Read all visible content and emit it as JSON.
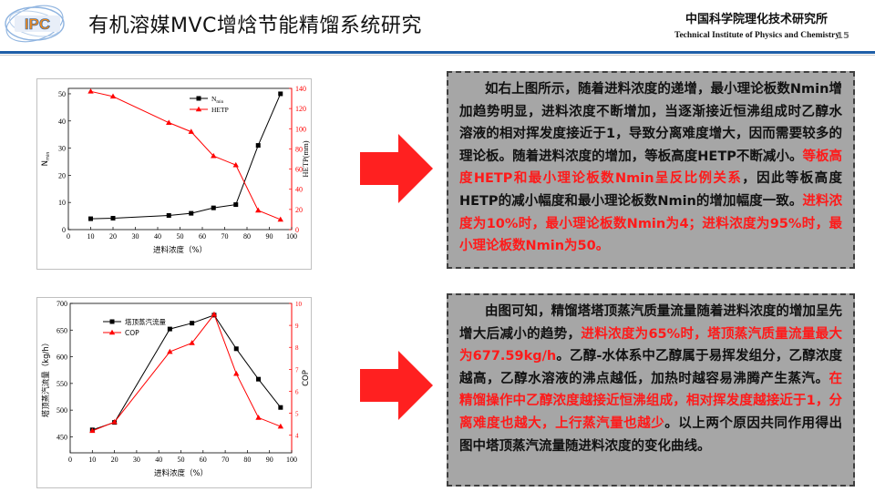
{
  "header": {
    "logo_text": "IPC",
    "title": "有机溶媒MVC增焓节能精馏系统研究",
    "institute_cn": "中国科学院理化技术研究所",
    "institute_en": "Technical Institute of Physics and Chemistry",
    "page_number": "15"
  },
  "chart_data": [
    {
      "type": "line",
      "x": [
        10,
        20,
        45,
        55,
        65,
        75,
        85,
        95
      ],
      "xlabel": "进料浓度（%）",
      "xlim": [
        0,
        100
      ],
      "x_ticks": [
        0,
        10,
        20,
        30,
        40,
        50,
        60,
        70,
        80,
        90,
        100
      ],
      "y_left": {
        "label_main": "N",
        "label_sub": "min",
        "lim": [
          0,
          52
        ],
        "ticks": [
          0,
          10,
          20,
          30,
          40,
          50
        ]
      },
      "y_right": {
        "label": "HETP(mm)",
        "lim": [
          0,
          140
        ],
        "ticks": [
          0,
          20,
          40,
          60,
          80,
          100,
          120,
          140
        ],
        "color": "#ff0000"
      },
      "series": [
        {
          "name_main": "N",
          "name_sub": "min",
          "axis": "left",
          "color": "#000000",
          "marker": "square",
          "values": [
            4,
            4.2,
            5.2,
            6,
            8,
            9.2,
            31,
            50
          ]
        },
        {
          "name_main": "HETP",
          "name_sub": "",
          "axis": "right",
          "color": "#ff0000",
          "marker": "triangle",
          "values": [
            137,
            132,
            106,
            97,
            73,
            64,
            19,
            10
          ]
        }
      ],
      "legend_position": "top-center",
      "grid": false
    },
    {
      "type": "line",
      "x": [
        10,
        20,
        45,
        55,
        65,
        75,
        85,
        95
      ],
      "xlabel": "进料浓度（%）",
      "xlim": [
        0,
        100
      ],
      "x_ticks": [
        0,
        10,
        20,
        30,
        40,
        50,
        60,
        70,
        80,
        90,
        100
      ],
      "y_left": {
        "label_main": "塔顶蒸汽流量（kg/h）",
        "label_sub": "",
        "lim": [
          420,
          700
        ],
        "ticks": [
          450,
          500,
          550,
          600,
          650,
          700
        ]
      },
      "y_right": {
        "label": "COP",
        "lim": [
          3.2,
          10
        ],
        "ticks": [
          4,
          5,
          6,
          7,
          8,
          9,
          10
        ],
        "color": "#ff0000"
      },
      "series": [
        {
          "name_main": "塔顶蒸汽流量",
          "name_sub": "",
          "axis": "left",
          "color": "#000000",
          "marker": "square",
          "values": [
            463,
            477,
            652,
            663,
            678,
            615,
            558,
            505
          ]
        },
        {
          "name_main": "COP",
          "name_sub": "",
          "axis": "right",
          "color": "#ff0000",
          "marker": "triangle",
          "values": [
            4.2,
            4.6,
            7.8,
            8.2,
            9.5,
            6.8,
            4.8,
            4.4
          ]
        }
      ],
      "legend_position": "top-left",
      "grid": false
    }
  ],
  "textbox1": {
    "p1": "如右上图所示，随着进料浓度的递增，最小理论板数Nmin增加趋势明显，进料浓度不断增加，当逐渐接近恒沸组成时乙醇水溶液的相对挥发度接近于1，导致分离难度增大，因而需要较多的理论板。随着进料浓度的增加，等板高度HETP不断减小。",
    "r1": "等板高度HETP和最小理论板数Nmin呈反比例关系",
    "p2": "，因此等板高度HETP的减小幅度和最小理论板数Nmin的增加幅度一致。",
    "r2": "进料浓度为10%时，最小理论板数Nmin为4；进料浓度为95%时，最小理论板数Nmin为50。"
  },
  "textbox2": {
    "p1": "由图可知，精馏塔塔顶蒸汽质量流量随着进料浓度的增加呈先增大后减小的趋势，",
    "r1": "进料浓度为65%时，塔顶蒸汽质量流量最大为677.59kg/h",
    "p2": "。乙醇-水体系中乙醇属于易挥发组分，乙醇浓度越高，乙醇水溶液的沸点越低，加热时越容易沸腾产生蒸汽。",
    "r2": "在精馏操作中乙醇浓度越接近恒沸组成，相对挥发度越接近于1，分离难度也越大，上行蒸汽量也越少",
    "p3": "。以上两个原因共同作用得出图中塔顶蒸汽流量随进料浓度的变化曲线。"
  },
  "colors": {
    "accent_red": "#ff1a1a",
    "header_rule": "#1f5fa8",
    "box_fill": "#a6a6a6",
    "arrow": "#ff2020"
  }
}
